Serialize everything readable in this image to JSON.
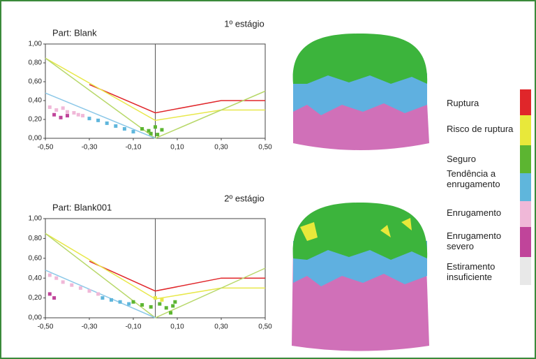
{
  "chart_data": [
    {
      "type": "line",
      "title": "Part: Blank",
      "subtitle": "1º estágio",
      "xlim": [
        -0.5,
        0.5
      ],
      "ylim": [
        0,
        1
      ],
      "xticks": [
        {
          "value": -0.5,
          "label": "-0,50"
        },
        {
          "value": -0.3,
          "label": "-0,30"
        },
        {
          "value": -0.1,
          "label": "-0,10"
        },
        {
          "value": 0.1,
          "label": "0,10"
        },
        {
          "value": 0.3,
          "label": "0,30"
        },
        {
          "value": 0.5,
          "label": "0,50"
        }
      ],
      "yticks": [
        {
          "value": 0,
          "label": "0,00"
        },
        {
          "value": 0.2,
          "label": "0,20"
        },
        {
          "value": 0.4,
          "label": "0,40"
        },
        {
          "value": 0.6,
          "label": "0,60"
        },
        {
          "value": 0.8,
          "label": "0,80"
        },
        {
          "value": 1,
          "label": "1,00"
        }
      ],
      "series": [
        {
          "color": "#e0262a",
          "marker": false,
          "x": [
            -0.3,
            0,
            0.3,
            0.5
          ],
          "values": [
            0.57,
            0.27,
            0.4,
            0.4
          ]
        },
        {
          "color": "#e8e84a",
          "marker": false,
          "x": [
            -0.5,
            0,
            0.3,
            0.5
          ],
          "values": [
            0.85,
            0.19,
            0.3,
            0.3
          ]
        },
        {
          "color": "#b8d86a",
          "marker": false,
          "x": [
            -0.5,
            0,
            0.5
          ],
          "values": [
            0.85,
            0,
            0.5
          ]
        },
        {
          "color": "#8cc8e8",
          "marker": false,
          "x": [
            -0.5,
            0
          ],
          "values": [
            0.48,
            0
          ]
        },
        {
          "color": "#f0b8d8",
          "marker": true,
          "x": [
            -0.48,
            -0.45,
            -0.42,
            -0.4,
            -0.37,
            -0.35,
            -0.33
          ],
          "values": [
            0.33,
            0.3,
            0.32,
            0.28,
            0.27,
            0.25,
            0.24
          ]
        },
        {
          "color": "#c0449a",
          "marker": true,
          "x": [
            -0.46,
            -0.43,
            -0.4
          ],
          "values": [
            0.25,
            0.22,
            0.24
          ]
        },
        {
          "color": "#5fb6dc",
          "marker": true,
          "x": [
            -0.3,
            -0.26,
            -0.22,
            -0.18,
            -0.14,
            -0.1
          ],
          "values": [
            0.21,
            0.19,
            0.16,
            0.13,
            0.1,
            0.07
          ]
        },
        {
          "color": "#5cb531",
          "marker": true,
          "x": [
            -0.06,
            -0.03,
            0,
            0.01,
            0.03,
            -0.02
          ],
          "values": [
            0.1,
            0.08,
            0.12,
            0.04,
            0.09,
            0.05
          ]
        }
      ]
    },
    {
      "type": "line",
      "title": "Part: Blank001",
      "subtitle": "2º estágio",
      "xlim": [
        -0.5,
        0.5
      ],
      "ylim": [
        0,
        1
      ],
      "xticks": [
        {
          "value": -0.5,
          "label": "-0,50"
        },
        {
          "value": -0.3,
          "label": "-0,30"
        },
        {
          "value": -0.1,
          "label": "-0,10"
        },
        {
          "value": 0.1,
          "label": "0,10"
        },
        {
          "value": 0.3,
          "label": "0,30"
        },
        {
          "value": 0.5,
          "label": "0,50"
        }
      ],
      "yticks": [
        {
          "value": 0,
          "label": "0,00"
        },
        {
          "value": 0.2,
          "label": "0,20"
        },
        {
          "value": 0.4,
          "label": "0,40"
        },
        {
          "value": 0.6,
          "label": "0,60"
        },
        {
          "value": 0.8,
          "label": "0,80"
        },
        {
          "value": 1,
          "label": "1,00"
        }
      ],
      "series": [
        {
          "color": "#e0262a",
          "marker": false,
          "x": [
            -0.3,
            0,
            0.3,
            0.5
          ],
          "values": [
            0.57,
            0.27,
            0.4,
            0.4
          ]
        },
        {
          "color": "#e8e84a",
          "marker": false,
          "x": [
            -0.5,
            0,
            0.3,
            0.5
          ],
          "values": [
            0.85,
            0.19,
            0.3,
            0.3
          ]
        },
        {
          "color": "#b8d86a",
          "marker": false,
          "x": [
            -0.5,
            0,
            0.5
          ],
          "values": [
            0.85,
            0,
            0.5
          ]
        },
        {
          "color": "#8cc8e8",
          "marker": false,
          "x": [
            -0.5,
            0
          ],
          "values": [
            0.48,
            0
          ]
        },
        {
          "color": "#f0b8d8",
          "marker": true,
          "x": [
            -0.48,
            -0.45,
            -0.42,
            -0.38,
            -0.34,
            -0.3,
            -0.26
          ],
          "values": [
            0.43,
            0.4,
            0.36,
            0.33,
            0.3,
            0.27,
            0.24
          ]
        },
        {
          "color": "#c0449a",
          "marker": true,
          "x": [
            -0.48,
            -0.46
          ],
          "values": [
            0.24,
            0.2
          ]
        },
        {
          "color": "#5fb6dc",
          "marker": true,
          "x": [
            -0.24,
            -0.2,
            -0.16,
            -0.12
          ],
          "values": [
            0.2,
            0.18,
            0.16,
            0.14
          ]
        },
        {
          "color": "#5cb531",
          "marker": true,
          "x": [
            -0.1,
            -0.06,
            -0.02,
            0.02,
            0.05,
            0.08,
            0.07,
            0.09
          ],
          "values": [
            0.16,
            0.13,
            0.11,
            0.14,
            0.1,
            0.12,
            0.05,
            0.16
          ]
        },
        {
          "color": "#e8e84a",
          "marker": true,
          "x": [
            0,
            0.03
          ],
          "values": [
            0.2,
            0.18
          ]
        }
      ]
    }
  ],
  "legend": {
    "items": [
      {
        "label": "Ruptura",
        "color": "#e0262a"
      },
      {
        "label": "Risco de ruptura",
        "color": "#e8e83a"
      },
      {
        "label": "Seguro",
        "color": "#5cb531"
      },
      {
        "label": "Tendência a enrugamento",
        "color": "#5fb6dc"
      },
      {
        "label": "Enrugamento",
        "color": "#f0b8d8"
      },
      {
        "label": "Enrugamento severo",
        "color": "#c0449a"
      },
      {
        "label": "Estiramento insuficiente",
        "color": "#e8e8e8"
      }
    ]
  }
}
